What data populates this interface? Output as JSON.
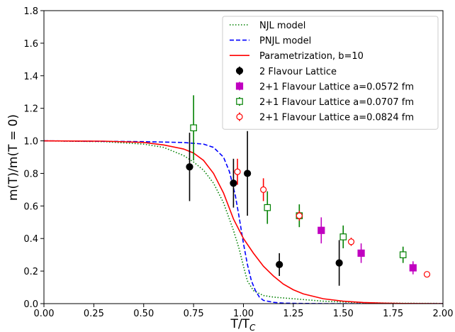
{
  "chart_data": {
    "type": "line",
    "xlabel": "T/T_C",
    "ylabel": "m(T)/m(T = 0)",
    "xlim": [
      0.0,
      2.0
    ],
    "ylim": [
      0.0,
      1.8
    ],
    "xticks": [
      "0.00",
      "0.25",
      "0.50",
      "0.75",
      "1.00",
      "1.25",
      "1.50",
      "1.75",
      "2.00"
    ],
    "yticks": [
      "0.0",
      "0.2",
      "0.4",
      "0.6",
      "0.8",
      "1.0",
      "1.2",
      "1.4",
      "1.6",
      "1.8"
    ],
    "xtick_values": [
      0.0,
      0.25,
      0.5,
      0.75,
      1.0,
      1.25,
      1.5,
      1.75,
      2.0
    ],
    "ytick_values": [
      0.0,
      0.2,
      0.4,
      0.6,
      0.8,
      1.0,
      1.2,
      1.4,
      1.6,
      1.8
    ],
    "grid": false,
    "legend_position": "top-right",
    "lines": [
      {
        "name": "NJL model",
        "color": "#008000",
        "style": "dotted",
        "x": [
          0.0,
          0.3,
          0.5,
          0.6,
          0.7,
          0.75,
          0.8,
          0.85,
          0.9,
          0.95,
          0.98,
          1.0,
          1.02,
          1.05,
          1.1,
          1.15,
          1.2,
          1.3,
          1.4,
          1.5,
          1.6,
          1.8,
          2.0
        ],
        "y": [
          1.0,
          0.995,
          0.98,
          0.96,
          0.91,
          0.87,
          0.82,
          0.74,
          0.62,
          0.45,
          0.33,
          0.23,
          0.14,
          0.08,
          0.05,
          0.04,
          0.035,
          0.025,
          0.015,
          0.01,
          0.005,
          0.002,
          0.001
        ]
      },
      {
        "name": "PNJL model",
        "color": "#0000ff",
        "style": "dashed",
        "x": [
          0.0,
          0.5,
          0.7,
          0.8,
          0.85,
          0.9,
          0.93,
          0.96,
          0.98,
          1.0,
          1.02,
          1.04,
          1.06,
          1.08,
          1.1,
          1.15,
          1.2,
          1.3,
          1.4,
          1.5,
          2.0
        ],
        "y": [
          1.0,
          0.995,
          0.99,
          0.98,
          0.96,
          0.9,
          0.81,
          0.66,
          0.52,
          0.37,
          0.24,
          0.14,
          0.08,
          0.04,
          0.02,
          0.008,
          0.003,
          0.001,
          0.0,
          0.0,
          0.0
        ]
      },
      {
        "name": "Parametrization, b=10",
        "color": "#ff0000",
        "style": "solid",
        "x": [
          0.0,
          0.3,
          0.5,
          0.6,
          0.7,
          0.75,
          0.8,
          0.85,
          0.9,
          0.95,
          1.0,
          1.05,
          1.1,
          1.15,
          1.2,
          1.25,
          1.3,
          1.4,
          1.5,
          1.6,
          1.7,
          1.8,
          2.0
        ],
        "y": [
          1.0,
          0.998,
          0.99,
          0.975,
          0.95,
          0.925,
          0.88,
          0.8,
          0.68,
          0.52,
          0.4,
          0.31,
          0.23,
          0.17,
          0.12,
          0.085,
          0.06,
          0.03,
          0.015,
          0.007,
          0.003,
          0.001,
          0.0
        ]
      }
    ],
    "scatter_series": [
      {
        "name": "2 Flavour Lattice",
        "color": "#000000",
        "marker": "circle",
        "filled": true,
        "x": [
          0.73,
          0.95,
          1.02,
          1.18,
          1.48
        ],
        "y": [
          0.84,
          0.74,
          0.8,
          0.24,
          0.25
        ],
        "err": [
          0.21,
          0.15,
          0.26,
          0.07,
          0.14
        ]
      },
      {
        "name": "2+1 Flavour Lattice a=0.0572 fm",
        "color": "#c000c0",
        "marker": "square",
        "filled": true,
        "x": [
          1.39,
          1.59,
          1.85
        ],
        "y": [
          0.45,
          0.31,
          0.22
        ],
        "err": [
          0.08,
          0.06,
          0.04
        ]
      },
      {
        "name": "2+1 Flavour Lattice a=0.0707 fm",
        "color": "#008000",
        "marker": "square",
        "filled": false,
        "x": [
          0.75,
          1.12,
          1.28,
          1.5,
          1.8
        ],
        "y": [
          1.08,
          0.59,
          0.54,
          0.41,
          0.3
        ],
        "err": [
          0.2,
          0.1,
          0.07,
          0.07,
          0.05
        ]
      },
      {
        "name": "2+1 Flavour Lattice a=0.0824 fm",
        "color": "#ff0000",
        "marker": "circle",
        "filled": false,
        "x": [
          0.97,
          1.1,
          1.28,
          1.54,
          1.92
        ],
        "y": [
          0.81,
          0.7,
          0.54,
          0.38,
          0.18
        ],
        "err": [
          0.08,
          0.07,
          0.03,
          0.025,
          0.015
        ]
      }
    ]
  }
}
